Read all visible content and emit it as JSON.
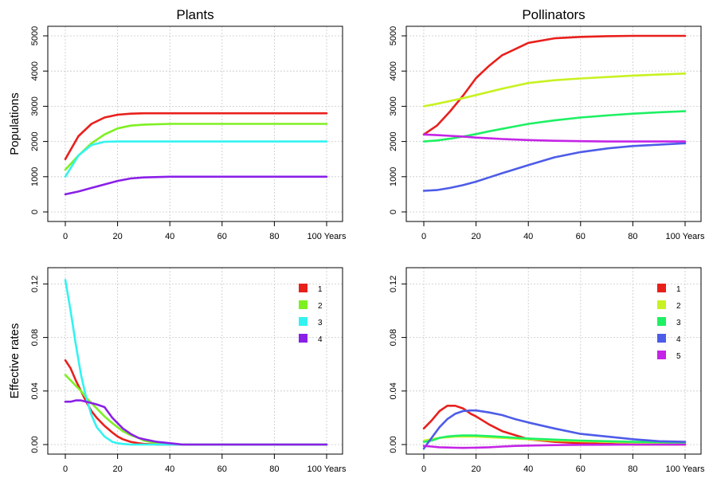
{
  "chart_data": [
    {
      "type": "line",
      "title": "Plants",
      "ylabel": "Populations",
      "xlim": [
        0,
        100
      ],
      "ylim": [
        0,
        5000
      ],
      "xticks": [
        "0",
        "20",
        "40",
        "60",
        "80",
        "100 Years"
      ],
      "xtick_values": [
        0,
        20,
        40,
        60,
        80,
        100
      ],
      "yticks": [
        "0",
        "1000",
        "2000",
        "3000",
        "4000",
        "5000"
      ],
      "ytick_values": [
        0,
        1000,
        2000,
        3000,
        4000,
        5000
      ],
      "grid": true,
      "legend": null,
      "x": [
        0,
        5,
        10,
        15,
        20,
        25,
        30,
        40,
        50,
        60,
        80,
        100
      ],
      "series": [
        {
          "color": "#e8201c",
          "values": [
            1500,
            2150,
            2500,
            2680,
            2760,
            2790,
            2800,
            2800,
            2800,
            2800,
            2800,
            2800
          ]
        },
        {
          "color": "#7ef022",
          "values": [
            1200,
            1600,
            1950,
            2200,
            2370,
            2450,
            2480,
            2500,
            2500,
            2500,
            2500,
            2500
          ]
        },
        {
          "color": "#33f3f0",
          "values": [
            1000,
            1600,
            1900,
            1990,
            2000,
            2000,
            2000,
            2000,
            2000,
            2000,
            2000,
            2000
          ]
        },
        {
          "color": "#8a1fe8",
          "values": [
            500,
            580,
            680,
            780,
            880,
            950,
            980,
            1000,
            1000,
            1000,
            1000,
            1000
          ]
        }
      ]
    },
    {
      "type": "line",
      "title": "Pollinators",
      "ylabel": "",
      "xlim": [
        0,
        100
      ],
      "ylim": [
        0,
        5000
      ],
      "xticks": [
        "0",
        "20",
        "40",
        "60",
        "80",
        "100 Years"
      ],
      "xtick_values": [
        0,
        20,
        40,
        60,
        80,
        100
      ],
      "yticks": [
        "0",
        "1000",
        "2000",
        "3000",
        "4000",
        "5000"
      ],
      "ytick_values": [
        0,
        1000,
        2000,
        3000,
        4000,
        5000
      ],
      "grid": true,
      "legend": null,
      "x": [
        0,
        5,
        10,
        15,
        20,
        25,
        30,
        40,
        50,
        60,
        70,
        80,
        90,
        100
      ],
      "series": [
        {
          "color": "#e8201c",
          "values": [
            2200,
            2450,
            2850,
            3300,
            3800,
            4150,
            4450,
            4800,
            4930,
            4970,
            4990,
            5000,
            5000,
            5000
          ]
        },
        {
          "color": "#c8f222",
          "values": [
            3000,
            3070,
            3150,
            3230,
            3320,
            3410,
            3500,
            3660,
            3740,
            3790,
            3830,
            3870,
            3900,
            3930
          ]
        },
        {
          "color": "#1ef064",
          "values": [
            2000,
            2030,
            2080,
            2140,
            2210,
            2290,
            2360,
            2500,
            2600,
            2680,
            2740,
            2790,
            2830,
            2860
          ]
        },
        {
          "color": "#4d5ce8",
          "values": [
            600,
            620,
            680,
            760,
            860,
            980,
            1100,
            1330,
            1550,
            1700,
            1800,
            1870,
            1910,
            1950
          ]
        },
        {
          "color": "#c424e6",
          "values": [
            2200,
            2180,
            2160,
            2140,
            2110,
            2090,
            2070,
            2040,
            2020,
            2010,
            2000,
            2000,
            2000,
            2000
          ]
        }
      ]
    },
    {
      "type": "line",
      "title": "",
      "ylabel": "Effective rates",
      "xlim": [
        0,
        100
      ],
      "ylim": [
        0,
        0.125
      ],
      "xticks": [
        "0",
        "20",
        "40",
        "60",
        "80",
        "100 Years"
      ],
      "xtick_values": [
        0,
        20,
        40,
        60,
        80,
        100
      ],
      "yticks": [
        "0.00",
        "0.04",
        "0.08",
        "0.12"
      ],
      "ytick_values": [
        0,
        0.04,
        0.08,
        0.12
      ],
      "grid": true,
      "legend": "top-right",
      "legend_entries": [
        {
          "label": "1",
          "color": "#e8201c"
        },
        {
          "label": "2",
          "color": "#7ef022"
        },
        {
          "label": "3",
          "color": "#33f3f0"
        },
        {
          "label": "4",
          "color": "#8a1fe8"
        }
      ],
      "x": [
        0,
        2,
        4,
        6,
        8,
        10,
        12,
        15,
        18,
        20,
        22,
        25,
        28,
        30,
        35,
        40,
        45,
        50,
        60,
        80,
        100
      ],
      "series": [
        {
          "color": "#e8201c",
          "values": [
            0.063,
            0.057,
            0.048,
            0.04,
            0.032,
            0.025,
            0.02,
            0.014,
            0.009,
            0.006,
            0.004,
            0.002,
            0.001,
            0.0005,
            0,
            0,
            0,
            0,
            0,
            0,
            0
          ]
        },
        {
          "color": "#7ef022",
          "values": [
            0.052,
            0.048,
            0.044,
            0.04,
            0.035,
            0.031,
            0.027,
            0.021,
            0.016,
            0.013,
            0.01,
            0.007,
            0.005,
            0.003,
            0.001,
            0.0005,
            0,
            0,
            0,
            0,
            0
          ]
        },
        {
          "color": "#33f3f0",
          "values": [
            0.123,
            0.1,
            0.075,
            0.052,
            0.035,
            0.022,
            0.013,
            0.006,
            0.002,
            0.001,
            0.0005,
            0,
            0,
            0,
            0,
            0,
            0,
            0,
            0,
            0,
            0
          ]
        },
        {
          "color": "#8a1fe8",
          "values": [
            0.032,
            0.032,
            0.033,
            0.033,
            0.032,
            0.031,
            0.03,
            0.028,
            0.02,
            0.016,
            0.012,
            0.008,
            0.005,
            0.004,
            0.002,
            0.001,
            0,
            0,
            0,
            0,
            0
          ]
        }
      ]
    },
    {
      "type": "line",
      "title": "",
      "ylabel": "",
      "xlim": [
        0,
        100
      ],
      "ylim": [
        0,
        0.125
      ],
      "xticks": [
        "0",
        "20",
        "40",
        "60",
        "80",
        "100 Years"
      ],
      "xtick_values": [
        0,
        20,
        40,
        60,
        80,
        100
      ],
      "yticks": [
        "0.00",
        "0.04",
        "0.08",
        "0.12"
      ],
      "ytick_values": [
        0,
        0.04,
        0.08,
        0.12
      ],
      "grid": true,
      "legend": "top-right",
      "legend_entries": [
        {
          "label": "1",
          "color": "#e8201c"
        },
        {
          "label": "2",
          "color": "#c8f222"
        },
        {
          "label": "3",
          "color": "#1ef064"
        },
        {
          "label": "4",
          "color": "#4d5ce8"
        },
        {
          "label": "5",
          "color": "#c424e6"
        }
      ],
      "x": [
        0,
        3,
        6,
        9,
        12,
        15,
        18,
        20,
        25,
        30,
        35,
        40,
        50,
        60,
        70,
        80,
        90,
        100
      ],
      "series": [
        {
          "color": "#e8201c",
          "values": [
            0.012,
            0.018,
            0.025,
            0.029,
            0.029,
            0.027,
            0.023,
            0.021,
            0.015,
            0.01,
            0.007,
            0.004,
            0.002,
            0.001,
            0.0005,
            0,
            0,
            0
          ]
        },
        {
          "color": "#c8f222",
          "values": [
            0.003,
            0.004,
            0.005,
            0.0055,
            0.006,
            0.006,
            0.006,
            0.006,
            0.0055,
            0.005,
            0.0045,
            0.004,
            0.003,
            0.0025,
            0.002,
            0.0015,
            0.001,
            0.001
          ]
        },
        {
          "color": "#1ef064",
          "values": [
            0.002,
            0.003,
            0.005,
            0.006,
            0.0065,
            0.0068,
            0.0068,
            0.0067,
            0.0063,
            0.0057,
            0.005,
            0.0045,
            0.0037,
            0.003,
            0.0025,
            0.002,
            0.0018,
            0.0015
          ]
        },
        {
          "color": "#4d5ce8",
          "values": [
            -0.003,
            0.005,
            0.013,
            0.019,
            0.023,
            0.025,
            0.0255,
            0.0255,
            0.024,
            0.022,
            0.019,
            0.0165,
            0.012,
            0.008,
            0.006,
            0.004,
            0.0025,
            0.002
          ]
        },
        {
          "color": "#c424e6",
          "values": [
            -0.001,
            -0.0015,
            -0.002,
            -0.0022,
            -0.0024,
            -0.0025,
            -0.0024,
            -0.0023,
            -0.002,
            -0.0015,
            -0.001,
            -0.0008,
            -0.0004,
            -0.0002,
            -0.0001,
            0,
            0,
            0
          ]
        }
      ]
    }
  ]
}
